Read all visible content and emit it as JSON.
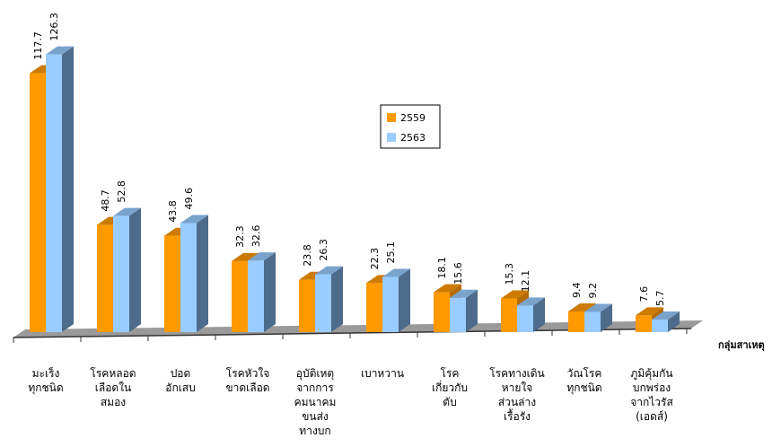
{
  "chart_data": {
    "type": "bar3d",
    "categories": [
      [
        "มะเร็ง",
        "ทุกชนิด"
      ],
      [
        "โรคหลอด",
        "เลือดใน",
        "สมอง"
      ],
      [
        "ปอด",
        "อักเสบ"
      ],
      [
        "โรคหัวใจ",
        "ขาดเลือด"
      ],
      [
        "อุบัติเหตุ",
        "จากการ",
        "คมนาคม",
        "ขนส่ง",
        "ทางบก"
      ],
      [
        "เบาหวาน"
      ],
      [
        "โรค",
        "เกี่ยวกับ",
        "ตับ"
      ],
      [
        "โรคทางเดิน",
        "หายใจ",
        "ส่วนล่าง",
        "เรื้อรัง"
      ],
      [
        "วัณโรค",
        "ทุกชนิด"
      ],
      [
        "ภูมิคุ้มกัน",
        "บกพร่อง",
        "จากไวรัส",
        "(เอดส์)"
      ]
    ],
    "series": [
      {
        "name": "2559",
        "color": "#ff9900",
        "values": [
          117.7,
          48.7,
          43.8,
          32.3,
          23.8,
          22.3,
          18.1,
          15.3,
          9.4,
          7.6
        ]
      },
      {
        "name": "2563",
        "color": "#99ccff",
        "values": [
          126.3,
          52.8,
          49.6,
          32.6,
          26.3,
          25.1,
          15.6,
          12.1,
          9.2,
          5.7
        ]
      }
    ],
    "x_label": "กลุ่มสาเหตุ"
  }
}
